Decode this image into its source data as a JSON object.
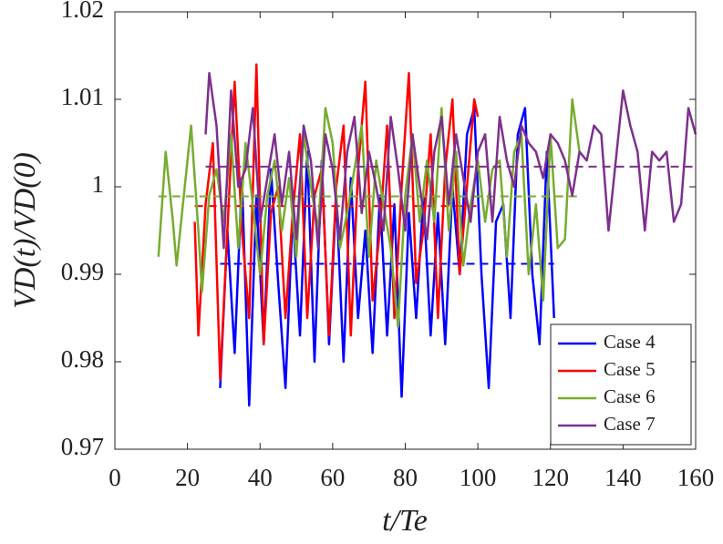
{
  "chart_data": {
    "type": "line",
    "xlabel": "t/Te",
    "ylabel": "VD(t)/VD(0)",
    "xlim": [
      0,
      160
    ],
    "xticks": [
      0,
      20,
      40,
      60,
      80,
      100,
      120,
      140,
      160
    ],
    "ylim": [
      0.97,
      1.02
    ],
    "yticks": [
      0.97,
      0.98,
      0.99,
      1,
      1.01,
      1.02
    ],
    "legend": "lower right",
    "grid": false,
    "series": [
      {
        "name": "Case 4",
        "color": "#0000ff",
        "mean": 0.9912,
        "x": [
          29,
          31,
          33,
          35,
          37,
          39,
          41,
          43,
          45,
          47,
          49,
          51,
          53,
          55,
          57,
          59,
          61,
          63,
          65,
          67,
          69,
          71,
          73,
          75,
          77,
          79,
          81,
          83,
          85,
          87,
          89,
          91,
          93,
          95,
          97,
          99,
          101,
          103,
          105,
          107,
          109,
          111,
          113,
          115,
          117,
          119,
          121
        ],
        "values": [
          0.977,
          0.995,
          0.981,
          1.001,
          0.975,
          0.999,
          0.982,
          1.002,
          0.989,
          0.977,
          0.997,
          0.983,
          1.004,
          0.98,
          1.003,
          0.982,
          0.999,
          0.98,
          1.001,
          0.985,
          0.995,
          0.981,
          0.999,
          0.983,
          0.998,
          0.976,
          0.997,
          0.985,
          0.999,
          0.983,
          0.997,
          0.982,
          1.0,
          0.99,
          1.006,
          1.009,
          0.99,
          0.977,
          0.996,
          0.998,
          0.985,
          1.006,
          1.009,
          0.99,
          0.982,
          1.004,
          0.985
        ]
      },
      {
        "name": "Case 5",
        "color": "#ff0000",
        "mean": 0.9978,
        "x": [
          22,
          23,
          25,
          27,
          29,
          31,
          33,
          35,
          37,
          39,
          41,
          43,
          45,
          47,
          49,
          51,
          53,
          55,
          57,
          59,
          61,
          63,
          65,
          67,
          69,
          71,
          73,
          75,
          77,
          79,
          81,
          83,
          85,
          87,
          89,
          91,
          93,
          95,
          97,
          99,
          100
        ],
        "values": [
          0.996,
          0.983,
          0.998,
          1.005,
          0.978,
          0.995,
          1.012,
          0.995,
          0.985,
          1.014,
          0.982,
          0.997,
          1.0,
          0.985,
          0.997,
          1.006,
          0.985,
          0.999,
          1.002,
          0.983,
          1.0,
          1.007,
          0.983,
          1.002,
          1.012,
          0.987,
          0.995,
          1.007,
          0.985,
          1.0,
          1.013,
          0.989,
          0.995,
          1.006,
          0.985,
          1.002,
          1.01,
          0.99,
          1.0,
          1.01,
          1.008
        ]
      },
      {
        "name": "Case 6",
        "color": "#77ac30",
        "mean": 0.9989,
        "x": [
          12,
          14,
          16,
          17,
          19,
          21,
          23,
          24,
          26,
          28,
          30,
          32,
          34,
          36,
          38,
          40,
          42,
          44,
          46,
          48,
          50,
          52,
          54,
          56,
          58,
          60,
          62,
          64,
          66,
          68,
          70,
          72,
          74,
          76,
          78,
          80,
          82,
          84,
          86,
          88,
          90,
          92,
          94,
          96,
          98,
          100,
          102,
          104,
          106,
          108,
          110,
          112,
          114,
          116,
          118,
          120,
          122,
          124,
          126,
          128
        ],
        "values": [
          0.992,
          1.004,
          0.996,
          0.991,
          0.999,
          1.007,
          0.995,
          0.988,
          0.999,
          1.002,
          0.996,
          1.006,
          0.993,
          1.005,
          0.998,
          0.99,
          0.999,
          1.003,
          0.995,
          1.001,
          0.992,
          1.006,
          1.0,
          0.995,
          1.009,
          1.005,
          0.993,
          0.997,
          1.002,
          1.007,
          0.992,
          1.003,
          0.998,
          0.993,
          0.984,
          0.999,
          1.006,
          0.996,
          1.003,
          0.996,
          1.009,
          0.995,
          1.004,
          0.991,
          0.998,
          1.003,
          0.996,
          1.002,
          1.003,
          0.992,
          1.004,
          1.006,
          0.99,
          0.998,
          0.987,
          1.006,
          0.993,
          0.994,
          1.01,
          1.004
        ]
      },
      {
        "name": "Case 7",
        "color": "#7e2f8e",
        "mean": 1.0023,
        "x": [
          25,
          26,
          28,
          30,
          32,
          34,
          36,
          38,
          40,
          42,
          44,
          46,
          48,
          50,
          52,
          54,
          56,
          58,
          60,
          62,
          64,
          66,
          68,
          70,
          72,
          74,
          76,
          78,
          80,
          82,
          84,
          86,
          88,
          90,
          92,
          94,
          96,
          98,
          100,
          102,
          104,
          106,
          108,
          110,
          112,
          114,
          116,
          118,
          120,
          122,
          124,
          126,
          128,
          130,
          132,
          134,
          136,
          138,
          140,
          142,
          144,
          146,
          148,
          150,
          152,
          154,
          156,
          158,
          160
        ],
        "values": [
          1.006,
          1.013,
          1.007,
          0.993,
          1.011,
          1.0,
          1.002,
          1.009,
          0.996,
          1.001,
          1.006,
          0.998,
          1.004,
          0.994,
          1.007,
          1.003,
          0.993,
          1.006,
          1.002,
          0.994,
          1.004,
          1.008,
          0.997,
          1.004,
          1.0,
          0.995,
          1.008,
          1.002,
          0.995,
          1.006,
          1.0,
          0.994,
          1.004,
          1.008,
          0.998,
          1.006,
          1.001,
          0.996,
          1.004,
          1.006,
          0.996,
          1.008,
          1.003,
          1.0,
          1.007,
          1.005,
          1.004,
          1.001,
          1.006,
          1.005,
          1.003,
          0.999,
          1.004,
          1.003,
          1.007,
          1.006,
          0.995,
          1.003,
          1.011,
          1.007,
          1.004,
          0.995,
          1.004,
          1.003,
          1.004,
          0.996,
          0.998,
          1.009,
          1.006
        ]
      }
    ]
  }
}
